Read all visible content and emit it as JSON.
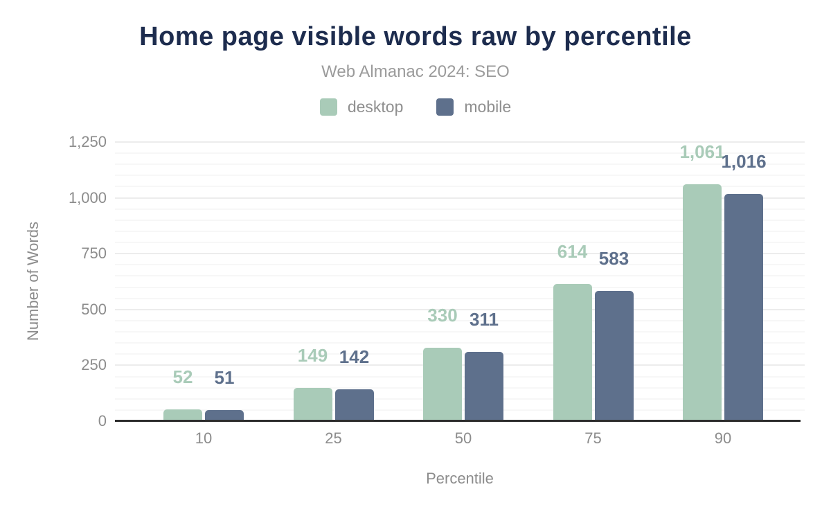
{
  "chart_data": {
    "type": "bar",
    "title": "Home page visible words raw by percentile",
    "subtitle": "Web Almanac 2024: SEO",
    "categories": [
      "10",
      "25",
      "50",
      "75",
      "90"
    ],
    "series": [
      {
        "name": "desktop",
        "color": "#a9cbb8",
        "values": [
          52,
          149,
          330,
          614,
          1061
        ]
      },
      {
        "name": "mobile",
        "color": "#5e708c",
        "values": [
          51,
          142,
          311,
          583,
          1016
        ]
      }
    ],
    "xlabel": "Percentile",
    "ylabel": "Number of Words",
    "ylim": [
      0,
      1250
    ],
    "yticks": [
      0,
      250,
      500,
      750,
      1000,
      1250
    ],
    "grid": {
      "minor_step": 50,
      "major_step": 250,
      "grid_on": true
    },
    "legend_position": "top",
    "value_labels": true
  },
  "colors": {
    "title": "#1d2c4e",
    "subtitle": "#9b9b9b",
    "tick_text": "#8c8c8c",
    "desktop_series": "#a9cbb8",
    "mobile_series": "#5e708c",
    "axis_line": "#2d2d2d"
  }
}
